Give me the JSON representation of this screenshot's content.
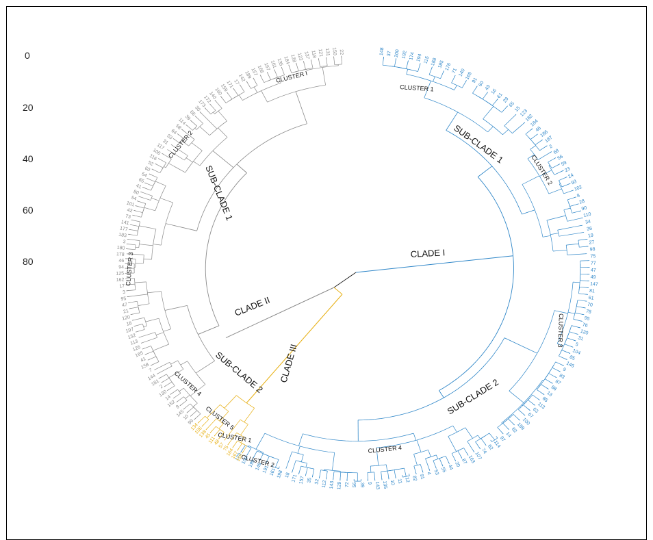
{
  "colors": {
    "clade1": "#2e86c8",
    "clade2": "#8a8a8a",
    "clade3": "#e8b21a",
    "text": "#111111"
  },
  "scale": {
    "labels": [
      "0",
      "20",
      "40",
      "60",
      "80"
    ]
  },
  "clades": [
    {
      "id": "clade1",
      "label": "CLADE I"
    },
    {
      "id": "clade2",
      "label": "CLADE II"
    },
    {
      "id": "clade3",
      "label": "CLADE III"
    }
  ],
  "subclades": {
    "clade1_sub1": "SUB-CLADE 1",
    "clade1_sub2": "SUB-CLADE 2",
    "clade2_sub1": "SUB-CLADE 1",
    "clade2_sub2": "SUB-CLADE 2"
  },
  "clusters": {
    "c1_cluster1": "CLUSTER 1",
    "c1_cluster2": "CLUSTER 2",
    "c1_cluster3": "CLUSTER 3",
    "c1_cluster4": "CLUSTER 4",
    "c2_cluster1": "CLUSTER I",
    "c2_cluster2": "CLUSTER 2",
    "c2_cluster3": "CLUSTER 3",
    "c2_cluster4": "CLUSTER 4",
    "c2_cluster5": "CLUSTER 5",
    "c3_cluster1": "CLUSTER 1",
    "c3_cluster2": "CLUSTER 2"
  },
  "tips": {
    "clade1": [
      "148",
      "37",
      "200",
      "192",
      "174",
      "194",
      "115",
      "188",
      "185",
      "176",
      "71",
      "140",
      "169",
      "91",
      "60",
      "43",
      "16",
      "61",
      "29",
      "65",
      "15",
      "123",
      "182",
      "184",
      "46",
      "186",
      "187",
      "2",
      "68",
      "56",
      "59",
      "23",
      "24",
      "93",
      "102",
      "8",
      "28",
      "90",
      "110",
      "34",
      "36",
      "19",
      "27",
      "98",
      "75",
      "77",
      "47",
      "49",
      "147",
      "81",
      "61",
      "70",
      "78",
      "95",
      "76",
      "120",
      "31",
      "5",
      "104",
      "85",
      "146",
      "9",
      "83",
      "87",
      "88",
      "13",
      "85",
      "113",
      "63",
      "67",
      "100",
      "189",
      "62",
      "14",
      "97",
      "114",
      "62",
      "74",
      "107",
      "163",
      "87",
      "20",
      "44",
      "55",
      "53",
      "4",
      "91",
      "82",
      "12",
      "11",
      "10",
      "135",
      "143",
      "9",
      "39",
      "56",
      "72",
      "129",
      "143",
      "112",
      "32",
      "35",
      "157",
      "171",
      "18",
      "198",
      "161",
      "191",
      "149",
      "199",
      "109",
      "170"
    ],
    "clade2": [
      "99",
      "10",
      "145",
      "9",
      "152",
      "14",
      "130",
      "2",
      "181",
      "144",
      "7",
      "158",
      "41",
      "165",
      "125",
      "113",
      "132",
      "197",
      "18",
      "120",
      "21",
      "47",
      "95",
      "3",
      "17",
      "162",
      "125",
      "94",
      "46",
      "178",
      "180",
      "3",
      "183",
      "177",
      "141",
      "73",
      "42",
      "101",
      "54",
      "80",
      "41",
      "65",
      "54",
      "60",
      "52",
      "116",
      "106",
      "117",
      "31",
      "33",
      "64",
      "58",
      "114",
      "39",
      "66",
      "30",
      "173",
      "172",
      "140",
      "160",
      "159",
      "171",
      "17",
      "142",
      "189",
      "157",
      "168",
      "167",
      "161",
      "135",
      "184",
      "128",
      "122",
      "137",
      "118",
      "121",
      "131",
      "150",
      "22"
    ],
    "clade3": [
      "155",
      "167",
      "164",
      "75",
      "57",
      "48",
      "111",
      "45",
      "138",
      "106",
      "134"
    ]
  }
}
